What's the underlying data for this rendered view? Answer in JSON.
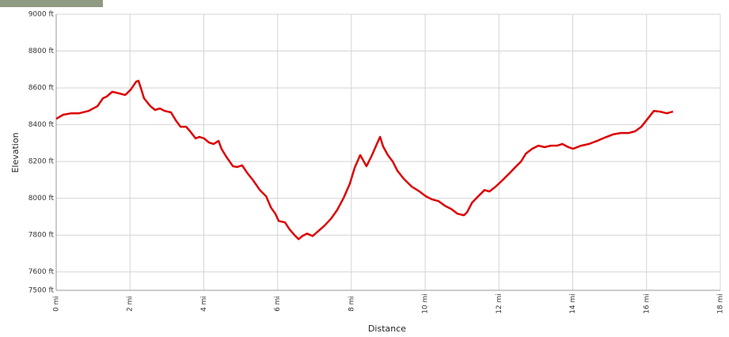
{
  "chart_data": {
    "type": "line",
    "x_label": "Distance",
    "y_label": "Elevation",
    "color": "#dd0000",
    "grid": true,
    "xlim": [
      0,
      18
    ],
    "ylim": [
      7500,
      9000
    ],
    "xticks": [
      {
        "value": 0,
        "label": "0 mi"
      },
      {
        "value": 2,
        "label": "2 mi"
      },
      {
        "value": 4,
        "label": "4 mi"
      },
      {
        "value": 6,
        "label": "6 mi"
      },
      {
        "value": 8,
        "label": "8 mi"
      },
      {
        "value": 10,
        "label": "10 mi"
      },
      {
        "value": 12,
        "label": "12 mi"
      },
      {
        "value": 14,
        "label": "14 mi"
      },
      {
        "value": 16,
        "label": "16 mi"
      },
      {
        "value": 18,
        "label": "18 mi"
      }
    ],
    "yticks": [
      {
        "value": 7500,
        "label": "7500 ft"
      },
      {
        "value": 7600,
        "label": "7600 ft"
      },
      {
        "value": 7800,
        "label": "7800 ft"
      },
      {
        "value": 8000,
        "label": "8000 ft"
      },
      {
        "value": 8200,
        "label": "8200 ft"
      },
      {
        "value": 8400,
        "label": "8400 ft"
      },
      {
        "value": 8600,
        "label": "8600 ft"
      },
      {
        "value": 8800,
        "label": "8800 ft"
      },
      {
        "value": 9000,
        "label": "9000 ft"
      }
    ],
    "x": [
      0,
      0.19,
      0.41,
      0.62,
      0.88,
      1.12,
      1.27,
      1.37,
      1.52,
      1.7,
      1.87,
      2.02,
      2.17,
      2.23,
      2.3,
      2.38,
      2.55,
      2.68,
      2.81,
      2.94,
      3.11,
      3.24,
      3.37,
      3.52,
      3.63,
      3.78,
      3.88,
      4.01,
      4.14,
      4.27,
      4.4,
      4.48,
      4.61,
      4.79,
      4.91,
      5.04,
      5.17,
      5.34,
      5.52,
      5.69,
      5.82,
      5.94,
      6.03,
      6.2,
      6.33,
      6.46,
      6.57,
      6.67,
      6.8,
      6.95,
      7.1,
      7.27,
      7.45,
      7.62,
      7.79,
      7.96,
      8.09,
      8.24,
      8.41,
      8.56,
      8.69,
      8.78,
      8.86,
      8.99,
      9.12,
      9.25,
      9.42,
      9.64,
      9.85,
      10.02,
      10.19,
      10.36,
      10.54,
      10.71,
      10.88,
      11.05,
      11.14,
      11.27,
      11.44,
      11.61,
      11.74,
      11.91,
      12.09,
      12.26,
      12.43,
      12.6,
      12.73,
      12.9,
      13.07,
      13.24,
      13.41,
      13.58,
      13.72,
      13.88,
      14.01,
      14.23,
      14.44,
      14.66,
      14.87,
      15.09,
      15.3,
      15.52,
      15.69,
      15.86,
      16.03,
      16.2,
      16.37,
      16.55,
      16.72
    ],
    "values": [
      8432,
      8454,
      8462,
      8462,
      8475,
      8501,
      8544,
      8553,
      8579,
      8570,
      8561,
      8591,
      8634,
      8639,
      8596,
      8544,
      8501,
      8480,
      8488,
      8475,
      8467,
      8424,
      8389,
      8389,
      8364,
      8325,
      8334,
      8325,
      8303,
      8295,
      8312,
      8269,
      8226,
      8174,
      8170,
      8179,
      8140,
      8097,
      8045,
      8011,
      7950,
      7916,
      7877,
      7869,
      7830,
      7800,
      7778,
      7795,
      7808,
      7795,
      7821,
      7851,
      7890,
      7938,
      8002,
      8080,
      8166,
      8235,
      8174,
      8235,
      8295,
      8334,
      8282,
      8235,
      8200,
      8149,
      8106,
      8063,
      8037,
      8011,
      7994,
      7985,
      7959,
      7942,
      7916,
      7908,
      7925,
      7976,
      8011,
      8045,
      8037,
      8063,
      8097,
      8131,
      8166,
      8200,
      8243,
      8269,
      8286,
      8278,
      8286,
      8286,
      8295,
      8278,
      8269,
      8286,
      8295,
      8312,
      8330,
      8347,
      8355,
      8355,
      8364,
      8389,
      8432,
      8475,
      8471,
      8462,
      8471
    ]
  }
}
